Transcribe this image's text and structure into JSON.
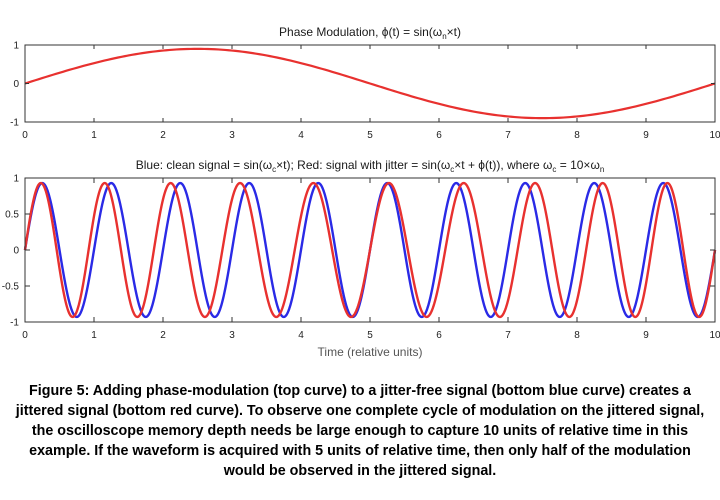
{
  "chart_data": [
    {
      "type": "line",
      "title_parts": [
        "Phase Modulation, ϕ(t) = sin(ω",
        "n",
        "×t)"
      ],
      "xlim": [
        0,
        10
      ],
      "ylim": [
        -1,
        1
      ],
      "xticks": [
        0,
        1,
        2,
        3,
        4,
        5,
        6,
        7,
        8,
        9,
        10
      ],
      "yticks": [
        1,
        0,
        -1
      ],
      "xtick_labels": [
        "0",
        "1",
        "2",
        "3",
        "4",
        "5",
        "6",
        "7",
        "8",
        "9",
        "10"
      ],
      "ytick_labels": [
        "1",
        "0",
        "-1"
      ],
      "grid": false,
      "series": [
        {
          "color": "#e8312f",
          "x_range": [
            0,
            10
          ],
          "function": "0.9 * sin(2*pi*x/10)",
          "samples": 201
        }
      ]
    },
    {
      "type": "line",
      "title_parts": [
        "Blue: clean signal = sin(ω",
        "c",
        "×t); Red: signal with jitter = sin(ω",
        "c",
        "×t + ϕ(t)), where ω",
        "c",
        " = 10×ω",
        "n"
      ],
      "xlabel": "Time (relative units)",
      "xlim": [
        0,
        10
      ],
      "ylim": [
        -1,
        1
      ],
      "xticks": [
        0,
        1,
        2,
        3,
        4,
        5,
        6,
        7,
        8,
        9,
        10
      ],
      "yticks": [
        1,
        0.5,
        0,
        -0.5,
        -1
      ],
      "xtick_labels": [
        "0",
        "1",
        "2",
        "3",
        "4",
        "5",
        "6",
        "7",
        "8",
        "9",
        "10"
      ],
      "ytick_labels": [
        "1",
        "0.5",
        "0",
        "-0.5",
        "-1"
      ],
      "grid": false,
      "series": [
        {
          "color": "#2a2ae6",
          "x_range": [
            0,
            10
          ],
          "function": "0.93 * sin(2*pi*x)",
          "samples": 1001
        },
        {
          "color": "#e8312f",
          "x_range": [
            0,
            10
          ],
          "function": "0.93 * sin(2*pi*x + 0.9*sin(2*pi*x/10))",
          "samples": 1001
        }
      ]
    }
  ],
  "caption": [
    "Figure 5: Adding phase-modulation (top curve) to a jitter-free signal (bottom blue curve) creates a",
    "jittered signal (bottom red curve). To observe one complete cycle of modulation on the jittered signal,",
    "the oscilloscope memory depth needs be large enough to capture 10 units of relative time in this",
    "example. If the waveform is acquired with 5 units of relative time, then only half of the modulation",
    "would be observed in the jittered signal."
  ]
}
